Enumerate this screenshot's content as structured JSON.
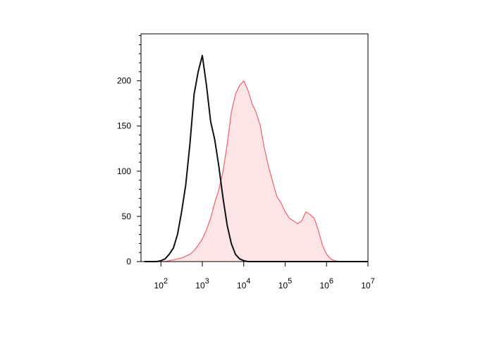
{
  "chart_data": {
    "type": "line",
    "xscale": "log",
    "x": [
      40,
      50,
      63,
      79,
      100,
      126,
      158,
      200,
      251,
      316,
      398,
      501,
      631,
      794,
      1000,
      1259,
      1585,
      1995,
      2512,
      3162,
      3981,
      5012,
      6310,
      7943,
      10000,
      12589,
      15849,
      19953,
      25119,
      31623,
      39811,
      50119,
      63096,
      79433,
      100000,
      125893,
      158489,
      199526,
      251189,
      316228,
      398107,
      501187,
      630957,
      794328,
      1000000,
      1258925,
      1584893,
      1995262,
      2511886,
      3162278,
      3981072,
      5011872,
      6309573,
      7943282,
      10000000
    ],
    "series": [
      {
        "color": "#f06070",
        "fill": "#fde4e6",
        "values": [
          0,
          0,
          0,
          0,
          0,
          0,
          1,
          2,
          3,
          4,
          6,
          8,
          12,
          18,
          25,
          35,
          48,
          65,
          80,
          100,
          130,
          165,
          185,
          195,
          200,
          190,
          175,
          165,
          150,
          125,
          105,
          88,
          72,
          65,
          55,
          48,
          45,
          42,
          45,
          55,
          52,
          48,
          35,
          18,
          8,
          3,
          1,
          0,
          0,
          0,
          0,
          0,
          0,
          0,
          0
        ]
      },
      {
        "color": "#111111",
        "values": [
          0,
          0,
          0,
          0,
          1,
          3,
          8,
          15,
          30,
          55,
          85,
          130,
          185,
          210,
          228,
          195,
          155,
          135,
          105,
          70,
          40,
          20,
          8,
          3,
          1,
          0,
          0,
          0,
          0,
          0,
          0,
          0,
          0,
          0,
          0,
          0,
          0,
          0,
          0,
          0,
          0,
          0,
          0,
          0,
          0,
          0,
          0,
          0,
          0,
          0,
          0,
          0,
          0,
          0,
          0
        ]
      }
    ],
    "xlim": [
      33,
      10000000
    ],
    "xticks": [
      {
        "value": 100,
        "label": "10",
        "power": "2"
      },
      {
        "value": 1000,
        "label": "10",
        "power": "3"
      },
      {
        "value": 10000,
        "label": "10",
        "power": "4"
      },
      {
        "value": 100000,
        "label": "10",
        "power": "5"
      },
      {
        "value": 1000000,
        "label": "10",
        "power": "6"
      },
      {
        "value": 10000000,
        "label": "10",
        "power": "7"
      }
    ],
    "ylim": [
      0,
      252
    ],
    "yticks": [
      0,
      50,
      100,
      150,
      200
    ],
    "yminorticks": [
      10,
      20,
      30,
      40,
      60,
      70,
      80,
      90,
      110,
      120,
      130,
      140,
      160,
      170,
      180,
      190,
      210,
      220,
      230,
      240,
      250
    ]
  }
}
